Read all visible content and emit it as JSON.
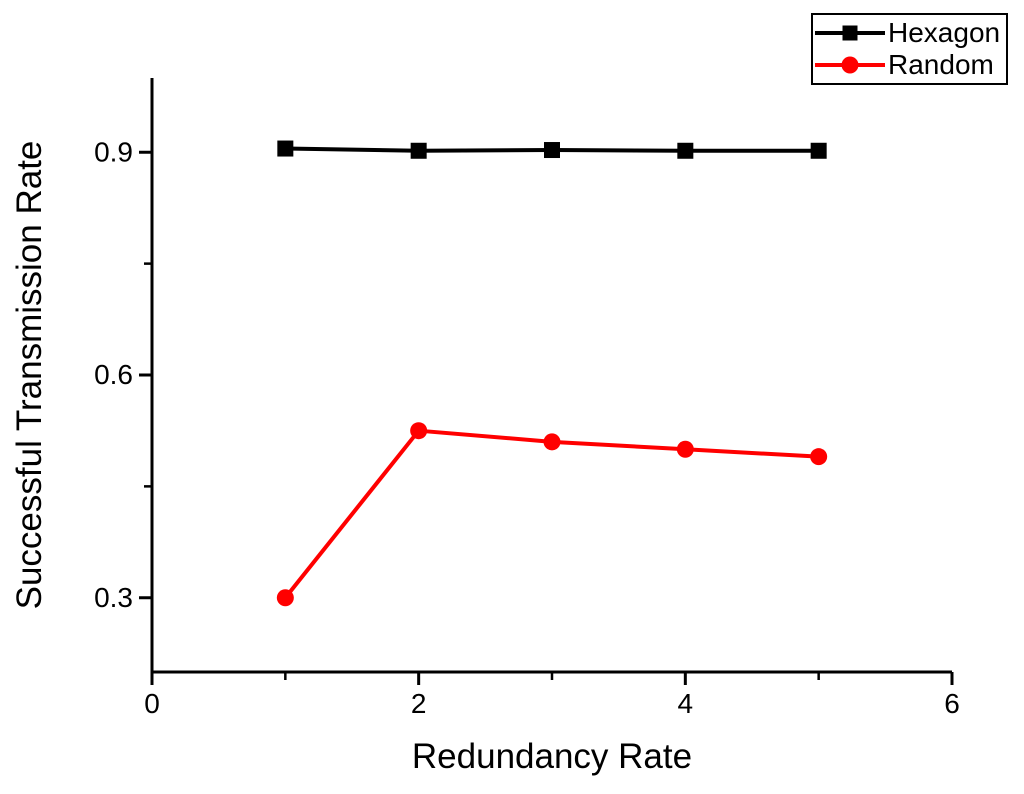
{
  "chart_data": {
    "type": "line",
    "title": "",
    "xlabel": "Redundancy Rate",
    "ylabel": "Successful Transmission Rate",
    "x": [
      1,
      2,
      3,
      4,
      5
    ],
    "series": [
      {
        "name": "Hexagon",
        "color": "#000000",
        "marker": "square",
        "values": [
          0.905,
          0.902,
          0.903,
          0.902,
          0.902
        ]
      },
      {
        "name": "Random",
        "color": "#ff0000",
        "marker": "circle",
        "values": [
          0.3,
          0.525,
          0.51,
          0.5,
          0.49
        ]
      }
    ],
    "xlim": [
      0,
      6
    ],
    "ylim": [
      0.2,
      1.0
    ],
    "x_major_ticks": [
      0,
      2,
      4,
      6
    ],
    "x_tick_labels": [
      "0",
      "2",
      "4",
      "6"
    ],
    "x_minor_ticks": [
      1,
      3,
      5
    ],
    "y_major_ticks": [
      0.3,
      0.6,
      0.9
    ],
    "y_tick_labels": [
      "0.3",
      "0.6",
      "0.9"
    ],
    "y_minor_ticks": [
      0.45,
      0.75
    ],
    "grid": false,
    "legend_position": "top-right",
    "legend_entries": [
      "Hexagon",
      "Random"
    ],
    "axis_color": "#000000",
    "background_color": "#ffffff"
  }
}
